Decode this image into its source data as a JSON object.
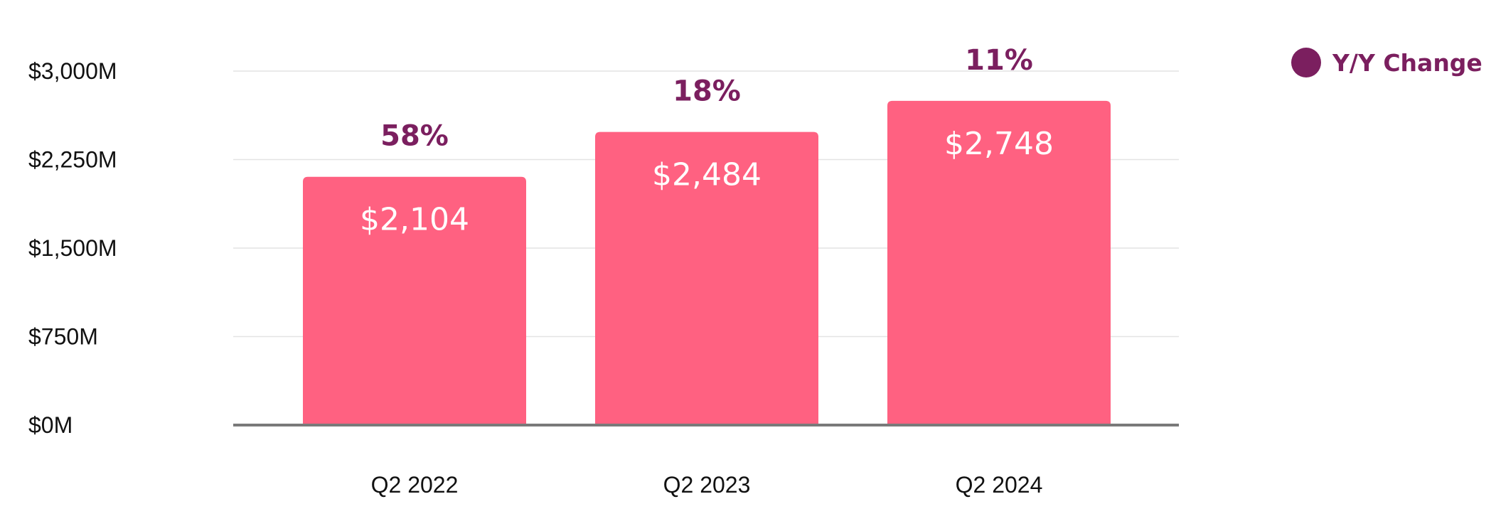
{
  "chart_data": {
    "type": "bar",
    "categories": [
      "Q2 2022",
      "Q2 2023",
      "Q2 2024"
    ],
    "values": [
      2104,
      2484,
      2748
    ],
    "value_labels": [
      "$2,104",
      "$2,484",
      "$2,748"
    ],
    "yoy_change_labels": [
      "58%",
      "18%",
      "11%"
    ],
    "y_ticks": [
      0,
      750,
      1500,
      2250,
      3000
    ],
    "y_tick_labels": [
      "$0M",
      "$750M",
      "$1,500M",
      "$2,250M",
      "$3,000M"
    ],
    "ylim": [
      0,
      3000
    ],
    "grid": true,
    "legend": {
      "label": "Y/Y Change",
      "position": "top-right"
    },
    "title": "",
    "xlabel": "",
    "ylabel": ""
  },
  "colors": {
    "bar": "#ff6181",
    "accent": "#7b1f5f",
    "grid": "#e4e4e4",
    "baseline": "#7a7a7a",
    "text": "#111111"
  }
}
